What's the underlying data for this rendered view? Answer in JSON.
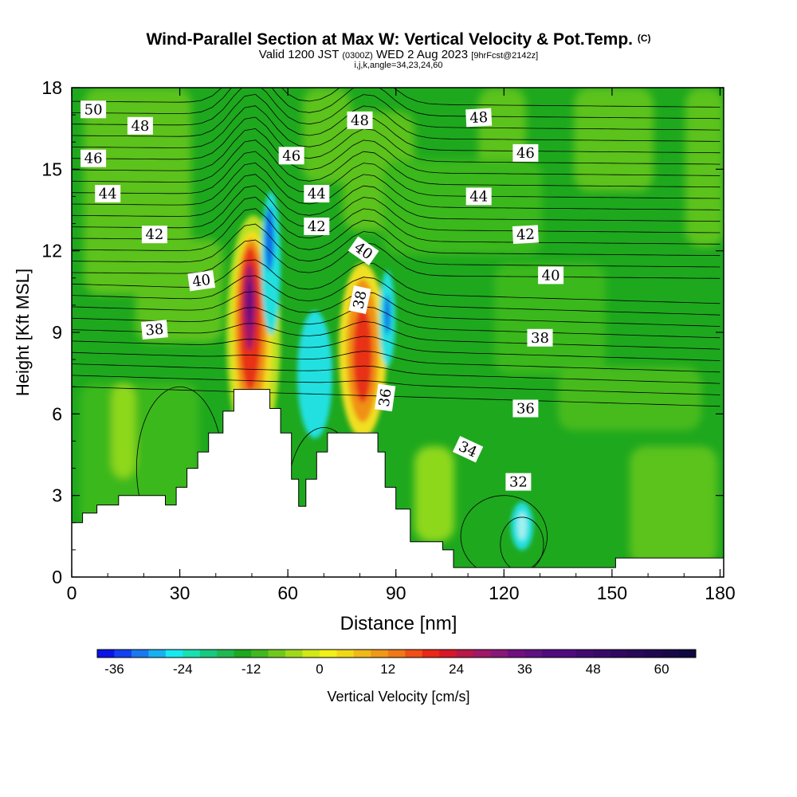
{
  "header": {
    "title": "Wind-Parallel Section at Max W: Vertical Velocity & Pot.Temp.",
    "title_mark": "(C)",
    "valid_prefix": "Valid 1200 JST",
    "valid_utc": "(0300Z)",
    "valid_date": "WED 2 Aug 2023",
    "forecast": "[9hrFcst@2142z]",
    "grid_info": "i,j,k,angle=34,23,24,60"
  },
  "chart_data": {
    "type": "heatmap",
    "xlabel": "Distance [nm]",
    "ylabel": "Height [Kft MSL]",
    "xlim": [
      0,
      181
    ],
    "ylim": [
      0,
      18
    ],
    "xticks": [
      0,
      30,
      60,
      90,
      120,
      150,
      180
    ],
    "yticks": [
      0,
      3,
      6,
      9,
      12,
      15,
      18
    ],
    "terrain": [
      [
        0,
        2
      ],
      [
        3,
        2
      ],
      [
        3,
        2.35
      ],
      [
        7,
        2.35
      ],
      [
        7,
        2.65
      ],
      [
        13,
        2.65
      ],
      [
        13,
        3
      ],
      [
        26,
        3
      ],
      [
        26,
        2.65
      ],
      [
        29,
        2.65
      ],
      [
        29,
        3.3
      ],
      [
        32,
        3.3
      ],
      [
        32,
        4
      ],
      [
        35,
        4
      ],
      [
        35,
        4.6
      ],
      [
        38,
        4.6
      ],
      [
        38,
        5.3
      ],
      [
        42,
        5.3
      ],
      [
        42,
        6.1
      ],
      [
        45,
        6.1
      ],
      [
        45,
        6.9
      ],
      [
        55,
        6.9
      ],
      [
        55,
        6.2
      ],
      [
        58,
        6.2
      ],
      [
        58,
        5.3
      ],
      [
        61,
        5.3
      ],
      [
        61,
        3.6
      ],
      [
        63,
        3.6
      ],
      [
        63,
        2.6
      ],
      [
        65,
        2.6
      ],
      [
        65,
        3.6
      ],
      [
        68,
        3.6
      ],
      [
        68,
        4.6
      ],
      [
        71,
        4.6
      ],
      [
        71,
        5.3
      ],
      [
        85,
        5.3
      ],
      [
        85,
        4.6
      ],
      [
        87,
        4.6
      ],
      [
        87,
        3.3
      ],
      [
        90,
        3.3
      ],
      [
        90,
        2.5
      ],
      [
        94,
        2.5
      ],
      [
        94,
        1.3
      ],
      [
        103,
        1.3
      ],
      [
        103,
        1
      ],
      [
        106,
        1
      ],
      [
        106,
        0.35
      ],
      [
        151,
        0.35
      ],
      [
        151,
        0.7
      ],
      [
        181,
        0.7
      ]
    ],
    "contour_labels": [
      {
        "value": "50",
        "x": 6,
        "y": 17.2,
        "angle": 0
      },
      {
        "value": "48",
        "x": 19,
        "y": 16.6,
        "angle": 0
      },
      {
        "value": "48",
        "x": 80,
        "y": 16.8,
        "angle": 0
      },
      {
        "value": "48",
        "x": 113,
        "y": 16.9,
        "angle": -3
      },
      {
        "value": "46",
        "x": 6,
        "y": 15.4,
        "angle": 0
      },
      {
        "value": "46",
        "x": 61,
        "y": 15.5,
        "angle": 0
      },
      {
        "value": "46",
        "x": 126,
        "y": 15.6,
        "angle": 0
      },
      {
        "value": "44",
        "x": 10,
        "y": 14.1,
        "angle": 0
      },
      {
        "value": "44",
        "x": 68,
        "y": 14.1,
        "angle": 0
      },
      {
        "value": "44",
        "x": 113,
        "y": 14.0,
        "angle": 0
      },
      {
        "value": "42",
        "x": 23,
        "y": 12.6,
        "angle": 0
      },
      {
        "value": "42",
        "x": 68,
        "y": 12.9,
        "angle": 0
      },
      {
        "value": "42",
        "x": 126,
        "y": 12.6,
        "angle": -3
      },
      {
        "value": "40",
        "x": 36,
        "y": 10.9,
        "angle": -8
      },
      {
        "value": "40",
        "x": 81,
        "y": 12.0,
        "angle": 35
      },
      {
        "value": "40",
        "x": 133,
        "y": 11.1,
        "angle": 0
      },
      {
        "value": "38",
        "x": 23,
        "y": 9.1,
        "angle": -5
      },
      {
        "value": "38",
        "x": 80,
        "y": 10.2,
        "angle": -78
      },
      {
        "value": "38",
        "x": 130,
        "y": 8.8,
        "angle": 0
      },
      {
        "value": "36",
        "x": 87,
        "y": 6.6,
        "angle": -82
      },
      {
        "value": "36",
        "x": 126,
        "y": 6.2,
        "angle": 0
      },
      {
        "value": "34",
        "x": 110,
        "y": 4.7,
        "angle": 25
      },
      {
        "value": "32",
        "x": 124,
        "y": 3.5,
        "angle": 0
      }
    ],
    "colorbar": {
      "label": "Vertical Velocity [cm/s]",
      "tick_labels": [
        "-36",
        "-24",
        "-12",
        "0",
        "12",
        "24",
        "36",
        "48",
        "60"
      ],
      "min": -39,
      "max": 66,
      "step": 3
    }
  }
}
